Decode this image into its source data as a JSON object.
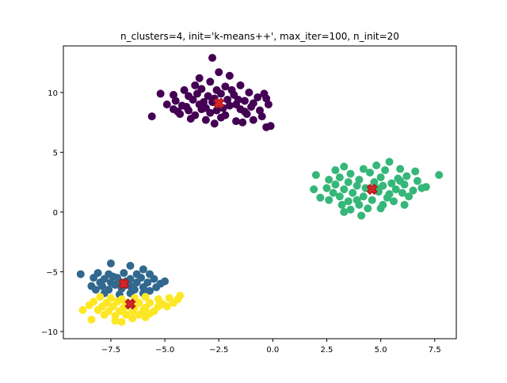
{
  "chart_data": {
    "type": "scatter",
    "title": "n_clusters=4, init='k-means++', max_iter=100, n_init=20",
    "xlabel": "",
    "ylabel": "",
    "xlim": [
      -9.7,
      8.5
    ],
    "ylim": [
      -10.6,
      13.9
    ],
    "x_ticks": [
      -7.5,
      -5.0,
      -2.5,
      0.0,
      2.5,
      5.0,
      7.5
    ],
    "x_tick_labels": [
      "−7.5",
      "−5.0",
      "−2.5",
      "0.0",
      "2.5",
      "5.0",
      "7.5"
    ],
    "y_ticks": [
      -10,
      -5,
      0,
      5,
      10
    ],
    "y_tick_labels": [
      "−10",
      "−5",
      "0",
      "5",
      "10"
    ],
    "grid": false,
    "legend": "none",
    "clusters": [
      {
        "color": "#440154",
        "center": [
          -2.5,
          9.1
        ],
        "points": [
          [
            -2.8,
            12.9
          ],
          [
            -2.5,
            11.7
          ],
          [
            -3.4,
            11.2
          ],
          [
            -2.0,
            11.4
          ],
          [
            -2.9,
            10.9
          ],
          [
            -3.6,
            10.6
          ],
          [
            -2.2,
            10.5
          ],
          [
            -1.5,
            10.6
          ],
          [
            -4.1,
            10.2
          ],
          [
            -3.3,
            10.3
          ],
          [
            -2.6,
            10.2
          ],
          [
            -1.1,
            10.0
          ],
          [
            -0.4,
            9.9
          ],
          [
            -5.2,
            9.9
          ],
          [
            -4.6,
            9.8
          ],
          [
            -3.9,
            9.7
          ],
          [
            -3.0,
            9.7
          ],
          [
            -1.8,
            9.8
          ],
          [
            -0.7,
            9.6
          ],
          [
            -4.5,
            9.3
          ],
          [
            -3.7,
            9.4
          ],
          [
            -2.1,
            9.4
          ],
          [
            -1.3,
            9.3
          ],
          [
            -0.3,
            9.5
          ],
          [
            -4.9,
            9.0
          ],
          [
            -4.2,
            8.9
          ],
          [
            -3.4,
            9.0
          ],
          [
            -2.8,
            9.2
          ],
          [
            -1.7,
            9.0
          ],
          [
            -0.9,
            9.1
          ],
          [
            -0.2,
            9.0
          ],
          [
            -4.6,
            8.6
          ],
          [
            -3.9,
            8.5
          ],
          [
            -3.1,
            8.7
          ],
          [
            -2.3,
            8.7
          ],
          [
            -1.5,
            8.6
          ],
          [
            -0.6,
            8.5
          ],
          [
            -4.3,
            8.2
          ],
          [
            -3.6,
            8.1
          ],
          [
            -2.9,
            8.3
          ],
          [
            -2.2,
            8.1
          ],
          [
            -1.2,
            8.2
          ],
          [
            -0.5,
            8.0
          ],
          [
            -3.8,
            7.8
          ],
          [
            -3.1,
            7.7
          ],
          [
            -2.4,
            7.9
          ],
          [
            -1.7,
            7.6
          ],
          [
            -0.9,
            7.7
          ],
          [
            -2.7,
            7.4
          ],
          [
            -1.4,
            7.5
          ],
          [
            -0.1,
            7.2
          ],
          [
            -0.3,
            7.1
          ],
          [
            -5.6,
            8.0
          ],
          [
            -1.0,
            8.8
          ],
          [
            -2.6,
            8.5
          ],
          [
            -3.3,
            8.6
          ],
          [
            -2.0,
            8.9
          ],
          [
            -4.0,
            8.8
          ],
          [
            -1.6,
            9.4
          ],
          [
            -2.4,
            9.9
          ],
          [
            -3.5,
            9.9
          ],
          [
            -1.9,
            10.2
          ],
          [
            -2.7,
            9.5
          ],
          [
            -3.2,
            9.2
          ],
          [
            -1.3,
            8.4
          ],
          [
            -4.4,
            8.4
          ]
        ]
      },
      {
        "color": "#35b779",
        "center": [
          4.6,
          1.9
        ],
        "points": [
          [
            5.4,
            4.2
          ],
          [
            4.8,
            3.9
          ],
          [
            3.3,
            3.8
          ],
          [
            5.9,
            3.6
          ],
          [
            4.2,
            3.6
          ],
          [
            2.9,
            3.5
          ],
          [
            5.2,
            3.5
          ],
          [
            6.6,
            3.4
          ],
          [
            7.7,
            3.1
          ],
          [
            2.0,
            3.1
          ],
          [
            3.6,
            3.2
          ],
          [
            4.5,
            3.3
          ],
          [
            6.2,
            3.0
          ],
          [
            3.1,
            2.9
          ],
          [
            5.0,
            2.9
          ],
          [
            5.8,
            2.8
          ],
          [
            2.6,
            2.7
          ],
          [
            4.0,
            2.7
          ],
          [
            6.7,
            2.6
          ],
          [
            3.5,
            2.5
          ],
          [
            4.7,
            2.5
          ],
          [
            5.5,
            2.4
          ],
          [
            2.9,
            2.3
          ],
          [
            6.1,
            2.3
          ],
          [
            7.1,
            2.1
          ],
          [
            3.9,
            2.2
          ],
          [
            5.1,
            2.2
          ],
          [
            1.9,
            1.9
          ],
          [
            2.5,
            2.0
          ],
          [
            3.3,
            1.9
          ],
          [
            4.3,
            2.0
          ],
          [
            5.7,
            1.9
          ],
          [
            6.5,
            1.8
          ],
          [
            2.8,
            1.6
          ],
          [
            3.7,
            1.6
          ],
          [
            4.9,
            1.7
          ],
          [
            6.0,
            1.6
          ],
          [
            2.2,
            1.2
          ],
          [
            3.1,
            1.3
          ],
          [
            4.2,
            1.3
          ],
          [
            5.3,
            1.2
          ],
          [
            6.3,
            1.3
          ],
          [
            2.6,
            1.0
          ],
          [
            3.5,
            0.9
          ],
          [
            4.6,
            1.0
          ],
          [
            5.6,
            0.9
          ],
          [
            3.2,
            0.6
          ],
          [
            4.0,
            0.6
          ],
          [
            5.1,
            0.6
          ],
          [
            6.1,
            0.6
          ],
          [
            3.6,
            0.2
          ],
          [
            4.4,
            0.3
          ],
          [
            5.0,
            0.3
          ],
          [
            3.3,
            0.0
          ],
          [
            4.1,
            -0.3
          ],
          [
            5.4,
            1.5
          ],
          [
            4.8,
            2.0
          ],
          [
            3.9,
            1.0
          ],
          [
            6.9,
            2.0
          ],
          [
            5.9,
            2.6
          ]
        ]
      },
      {
        "color": "#31688e",
        "center": [
          -6.9,
          -6.0
        ],
        "points": [
          [
            -7.5,
            -4.3
          ],
          [
            -6.6,
            -4.5
          ],
          [
            -6.0,
            -4.8
          ],
          [
            -8.9,
            -5.2
          ],
          [
            -8.1,
            -5.1
          ],
          [
            -7.6,
            -5.2
          ],
          [
            -6.9,
            -5.1
          ],
          [
            -6.3,
            -5.2
          ],
          [
            -5.7,
            -5.2
          ],
          [
            -8.3,
            -5.5
          ],
          [
            -7.8,
            -5.6
          ],
          [
            -7.2,
            -5.5
          ],
          [
            -6.6,
            -5.6
          ],
          [
            -6.1,
            -5.5
          ],
          [
            -5.5,
            -5.6
          ],
          [
            -5.0,
            -5.8
          ],
          [
            -8.0,
            -5.9
          ],
          [
            -7.5,
            -5.9
          ],
          [
            -6.8,
            -5.8
          ],
          [
            -6.3,
            -5.9
          ],
          [
            -5.8,
            -5.9
          ],
          [
            -5.2,
            -6.0
          ],
          [
            -8.4,
            -6.2
          ],
          [
            -7.9,
            -6.2
          ],
          [
            -7.3,
            -6.1
          ],
          [
            -6.6,
            -6.2
          ],
          [
            -6.0,
            -6.3
          ],
          [
            -5.4,
            -6.3
          ],
          [
            -8.2,
            -6.5
          ],
          [
            -7.6,
            -6.5
          ],
          [
            -7.0,
            -6.4
          ],
          [
            -6.4,
            -6.5
          ],
          [
            -5.7,
            -6.6
          ],
          [
            -7.8,
            -6.8
          ],
          [
            -7.1,
            -6.9
          ],
          [
            -6.6,
            -6.8
          ],
          [
            -6.0,
            -6.8
          ],
          [
            -7.4,
            -5.4
          ],
          [
            -7.0,
            -6.0
          ]
        ]
      },
      {
        "color": "#fde725",
        "center": [
          -6.6,
          -7.7
        ],
        "points": [
          [
            -4.3,
            -7.0
          ],
          [
            -4.4,
            -7.3
          ],
          [
            -4.8,
            -7.2
          ],
          [
            -5.3,
            -7.3
          ],
          [
            -5.9,
            -7.1
          ],
          [
            -6.4,
            -7.2
          ],
          [
            -7.0,
            -7.3
          ],
          [
            -7.5,
            -7.2
          ],
          [
            -8.0,
            -7.1
          ],
          [
            -8.3,
            -7.5
          ],
          [
            -7.7,
            -7.6
          ],
          [
            -7.2,
            -7.5
          ],
          [
            -6.8,
            -7.6
          ],
          [
            -6.2,
            -7.6
          ],
          [
            -5.7,
            -7.6
          ],
          [
            -5.1,
            -7.7
          ],
          [
            -4.6,
            -7.6
          ],
          [
            -8.5,
            -7.8
          ],
          [
            -7.9,
            -7.9
          ],
          [
            -7.4,
            -7.9
          ],
          [
            -6.9,
            -8.0
          ],
          [
            -6.4,
            -8.0
          ],
          [
            -5.9,
            -8.0
          ],
          [
            -5.3,
            -7.9
          ],
          [
            -4.9,
            -7.9
          ],
          [
            -8.8,
            -8.2
          ],
          [
            -8.1,
            -8.2
          ],
          [
            -7.6,
            -8.3
          ],
          [
            -7.1,
            -8.3
          ],
          [
            -6.5,
            -8.3
          ],
          [
            -6.0,
            -8.2
          ],
          [
            -5.5,
            -8.3
          ],
          [
            -7.8,
            -8.6
          ],
          [
            -7.3,
            -8.7
          ],
          [
            -6.8,
            -8.6
          ],
          [
            -6.2,
            -8.6
          ],
          [
            -5.7,
            -8.5
          ],
          [
            -8.4,
            -9.0
          ],
          [
            -7.3,
            -9.1
          ],
          [
            -6.5,
            -8.9
          ],
          [
            -5.9,
            -8.8
          ],
          [
            -7.0,
            -9.2
          ]
        ]
      }
    ]
  }
}
